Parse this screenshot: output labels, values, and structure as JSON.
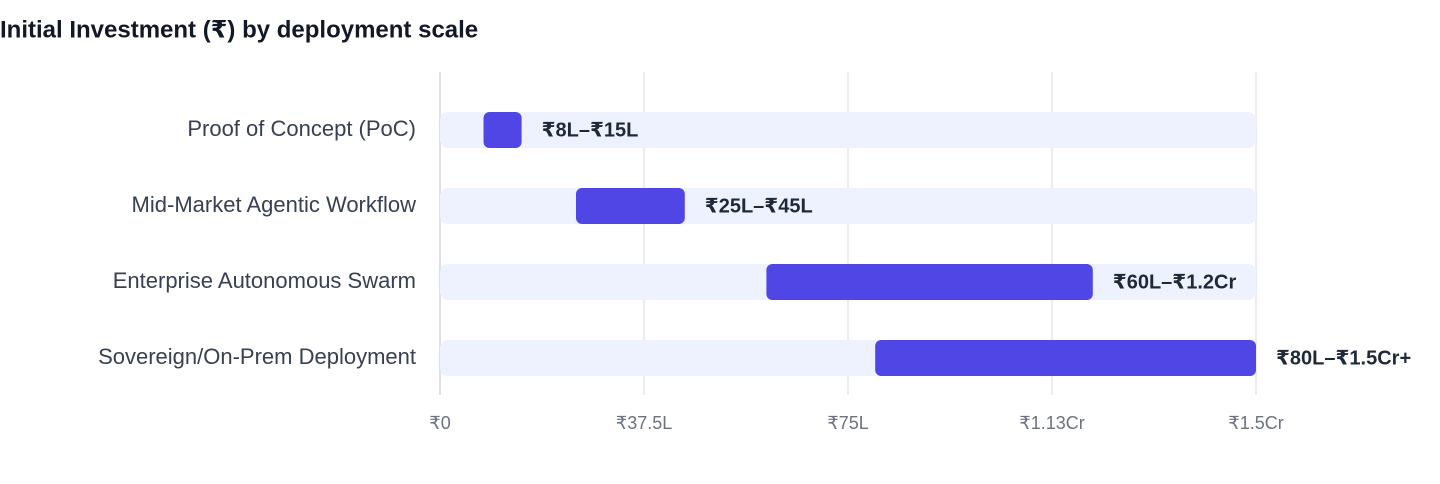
{
  "chart_data": {
    "type": "range_bar",
    "title": "Initial Investment (₹) by deployment scale",
    "categories": [
      "Proof of Concept (PoC)",
      "Mid-Market Agentic Workflow",
      "Enterprise Autonomous Swarm",
      "Sovereign/On-Prem Deployment"
    ],
    "low": [
      8,
      25,
      60,
      80
    ],
    "high": [
      15,
      45,
      120,
      150
    ],
    "value_labels": [
      "₹8L–₹15L",
      "₹25L–₹45L",
      "₹60L–₹1.2Cr",
      "₹80L–₹1.5Cr+"
    ],
    "color": "#4f46e5",
    "xlim": [
      0,
      150
    ],
    "xticks": [
      {
        "value": 0,
        "label": "₹0"
      },
      {
        "value": 37.5,
        "label": "₹37.5L"
      },
      {
        "value": 75,
        "label": "₹75L"
      },
      {
        "value": 112.5,
        "label": "₹1.13Cr"
      },
      {
        "value": 150,
        "label": "₹1.5Cr"
      }
    ],
    "grid": true
  }
}
